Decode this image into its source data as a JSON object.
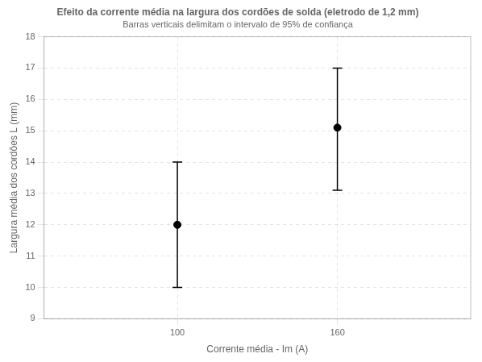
{
  "chart_data": {
    "type": "scatter",
    "title": "Efeito da corrente média na largura dos cordões de solda (eletrodo de 1,2 mm)",
    "subtitle": "Barras verticais delimitam o intervalo de 95% de confiança",
    "x_label": "Corrente média - Im (A)",
    "y_label": "Largura média dos cordões L (mm)",
    "x": [
      100,
      160
    ],
    "values": [
      12.0,
      15.1
    ],
    "err_lower": [
      2.0,
      2.0
    ],
    "err_upper": [
      2.0,
      1.9
    ],
    "xlim": [
      50,
      210
    ],
    "ylim": [
      9,
      18
    ],
    "xticks": [
      100,
      160
    ],
    "yticks": [
      9,
      10,
      11,
      12,
      13,
      14,
      15,
      16,
      17,
      18
    ],
    "color": "#000000",
    "marker": "circle",
    "grid": true
  }
}
